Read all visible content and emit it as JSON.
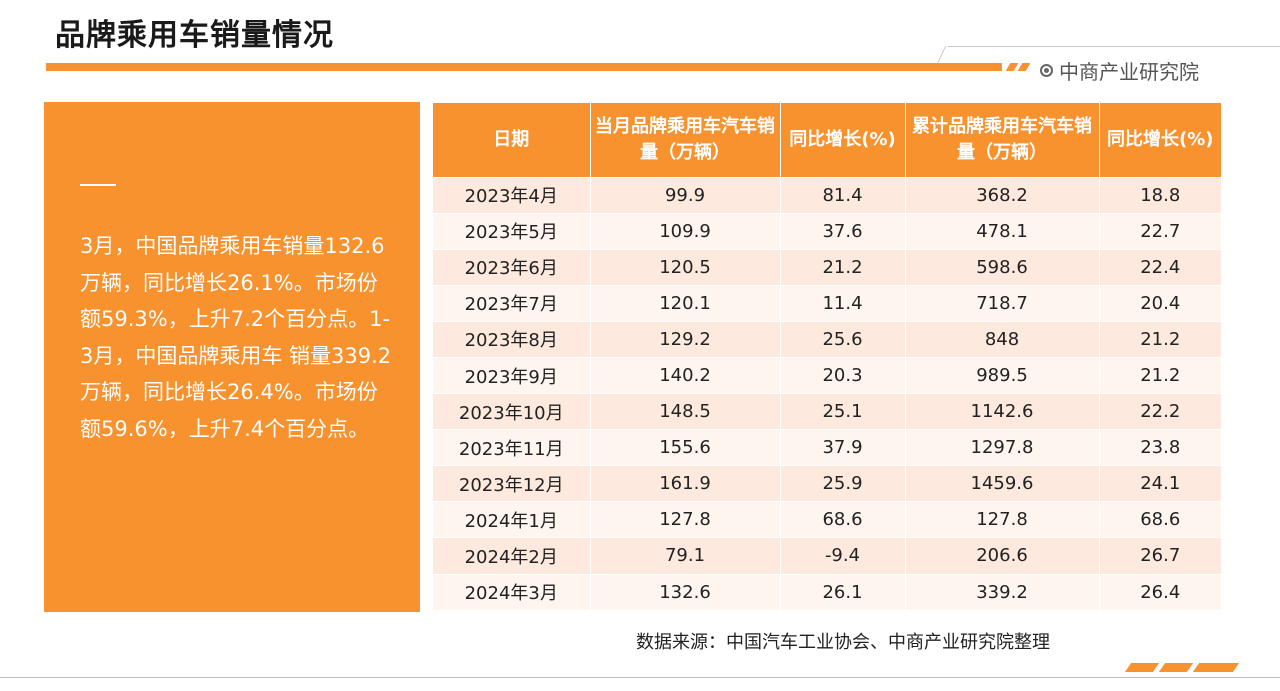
{
  "header": {
    "title": "品牌乘用车销量情况",
    "brand": "中商产业研究院"
  },
  "summary": {
    "text": "3月，中国品牌乘用车销量132.6万辆，同比增长26.1%。市场份额59.3%，上升7.2个百分点。1-3月，中国品牌乘用车 销量339.2万辆，同比增长26.4%。市场份额59.6%，上升7.4个百分点。"
  },
  "table": {
    "headers": [
      "日期",
      "当月品牌乘用车汽车销量（万辆）",
      "同比增长(%)",
      "累计品牌乘用车汽车销量（万辆）",
      "同比增长(%)"
    ],
    "rows": [
      [
        "2023年4月",
        "99.9",
        "81.4",
        "368.2",
        "18.8"
      ],
      [
        "2023年5月",
        "109.9",
        "37.6",
        "478.1",
        "22.7"
      ],
      [
        "2023年6月",
        "120.5",
        "21.2",
        "598.6",
        "22.4"
      ],
      [
        "2023年7月",
        "120.1",
        "11.4",
        "718.7",
        "20.4"
      ],
      [
        "2023年8月",
        "129.2",
        "25.6",
        "848",
        "21.2"
      ],
      [
        "2023年9月",
        "140.2",
        "20.3",
        "989.5",
        "21.2"
      ],
      [
        "2023年10月",
        "148.5",
        "25.1",
        "1142.6",
        "22.2"
      ],
      [
        "2023年11月",
        "155.6",
        "37.9",
        "1297.8",
        "23.8"
      ],
      [
        "2023年12月",
        "161.9",
        "25.9",
        "1459.6",
        "24.1"
      ],
      [
        "2024年1月",
        "127.8",
        "68.6",
        "127.8",
        "68.6"
      ],
      [
        "2024年2月",
        "79.1",
        "-9.4",
        "206.6",
        "26.7"
      ],
      [
        "2024年3月",
        "132.6",
        "26.1",
        "339.2",
        "26.4"
      ]
    ]
  },
  "source": "数据来源：中国汽车工业协会、中商产业研究院整理",
  "colors": {
    "accent": "#f7922f",
    "row_odd": "#fde9dd",
    "row_even": "#fef5ef"
  },
  "icons": {
    "brand": "circle-logo-icon"
  }
}
